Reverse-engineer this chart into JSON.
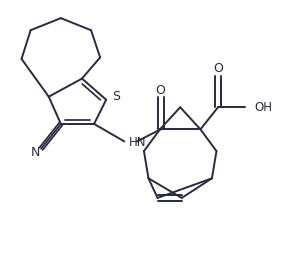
{
  "background": "#ffffff",
  "line_color": "#2a2a3e",
  "line_width": 1.4,
  "figsize": [
    3.03,
    2.75
  ],
  "dpi": 100,
  "xlim": [
    0,
    10
  ],
  "ylim": [
    0,
    9.1
  ]
}
